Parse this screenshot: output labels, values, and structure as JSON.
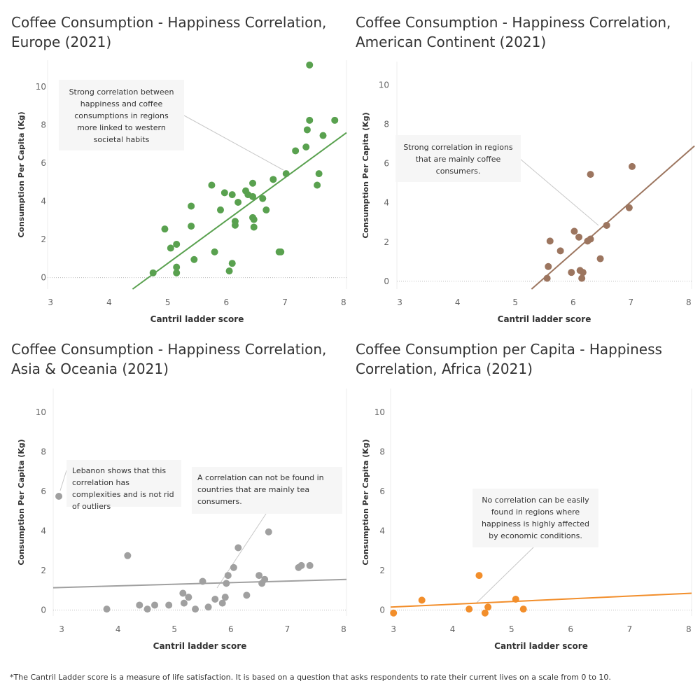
{
  "footnote": "*The Cantril Ladder score is a measure of life satisfaction. It is based on a question that asks respondents to rate their current lives on a scale from 0 to 10.",
  "chart_data": [
    {
      "type": "scatter",
      "title": "Coffee Consumption - Happiness  Correlation, Europe (2021)",
      "xlabel": "Cantril ladder score",
      "ylabel": "Consumption Per Capita (Kg)",
      "xlim": [
        2.95,
        8.05
      ],
      "ylim": [
        -0.6,
        11.4
      ],
      "x_ticks": [
        3,
        4,
        5,
        6,
        7,
        8
      ],
      "y_ticks": [
        0,
        2,
        4,
        6,
        8,
        10
      ],
      "color": "#59a14f",
      "trendline": [
        [
          4.4,
          -0.6
        ],
        [
          8.05,
          7.6
        ]
      ],
      "annotation": "Strong correlation between happiness and coffee consumptions in regions more linked to western societal habits",
      "points": [
        [
          4.75,
          0.25
        ],
        [
          4.95,
          2.55
        ],
        [
          5.05,
          1.55
        ],
        [
          5.15,
          0.25
        ],
        [
          5.15,
          0.55
        ],
        [
          5.15,
          1.75
        ],
        [
          5.4,
          3.75
        ],
        [
          5.4,
          2.7
        ],
        [
          5.45,
          0.95
        ],
        [
          5.75,
          4.85
        ],
        [
          5.8,
          1.35
        ],
        [
          5.9,
          3.55
        ],
        [
          5.97,
          4.45
        ],
        [
          6.05,
          0.35
        ],
        [
          6.1,
          4.35
        ],
        [
          6.1,
          0.75
        ],
        [
          6.15,
          2.75
        ],
        [
          6.15,
          2.95
        ],
        [
          6.2,
          3.95
        ],
        [
          6.33,
          4.55
        ],
        [
          6.37,
          4.35
        ],
        [
          6.45,
          4.25
        ],
        [
          6.45,
          4.95
        ],
        [
          6.45,
          3.15
        ],
        [
          6.47,
          3.05
        ],
        [
          6.47,
          2.65
        ],
        [
          6.62,
          4.15
        ],
        [
          6.68,
          3.55
        ],
        [
          6.8,
          5.15
        ],
        [
          6.9,
          1.35
        ],
        [
          6.93,
          1.35
        ],
        [
          7.02,
          5.45
        ],
        [
          7.18,
          6.65
        ],
        [
          7.36,
          6.85
        ],
        [
          7.38,
          7.75
        ],
        [
          7.42,
          8.25
        ],
        [
          7.42,
          11.15
        ],
        [
          7.55,
          4.85
        ],
        [
          7.58,
          5.45
        ],
        [
          7.65,
          7.45
        ],
        [
          7.85,
          8.25
        ]
      ]
    },
    {
      "type": "scatter",
      "title": "Coffee Consumption - Happiness  Correlation, American Continent (2021)",
      "xlabel": "Cantril ladder score",
      "ylabel": "Consumption Per Capita (Kg)",
      "xlim": [
        2.95,
        8.05
      ],
      "ylim": [
        -0.4,
        11.2
      ],
      "x_ticks": [
        3,
        4,
        5,
        6,
        7,
        8
      ],
      "y_ticks": [
        0,
        2,
        4,
        6,
        8,
        10
      ],
      "color": "#9c755f",
      "trendline": [
        [
          5.28,
          -0.4
        ],
        [
          8.1,
          6.9
        ]
      ],
      "annotation": "Strong correlation in regions that  are mainly coffee consumers.",
      "points": [
        [
          5.55,
          0.15
        ],
        [
          5.57,
          0.75
        ],
        [
          5.6,
          2.05
        ],
        [
          5.78,
          1.55
        ],
        [
          5.97,
          0.45
        ],
        [
          6.02,
          2.55
        ],
        [
          6.1,
          2.25
        ],
        [
          6.12,
          0.55
        ],
        [
          6.15,
          0.15
        ],
        [
          6.17,
          0.45
        ],
        [
          6.25,
          2.05
        ],
        [
          6.3,
          2.15
        ],
        [
          6.3,
          5.45
        ],
        [
          6.47,
          1.15
        ],
        [
          6.58,
          2.85
        ],
        [
          6.97,
          3.75
        ],
        [
          7.02,
          5.85
        ]
      ]
    },
    {
      "type": "scatter",
      "title": "Coffee Consumption - Happiness  Correlation, Asia & Oceania (2021)",
      "xlabel": "Cantril ladder score",
      "ylabel": "Consumption Per Capita (Kg)",
      "xlim": [
        2.85,
        8.05
      ],
      "ylim": [
        -0.3,
        11.2
      ],
      "x_ticks": [
        3,
        4,
        5,
        6,
        7,
        8
      ],
      "y_ticks": [
        0,
        2,
        4,
        6,
        8,
        10
      ],
      "color": "#a0a0a0",
      "trendline": [
        [
          2.85,
          1.13
        ],
        [
          8.05,
          1.55
        ]
      ],
      "annotations": [
        "Lebanon shows that this correlation has complexities and is not rid of outliers",
        "A correlation can not be found in countries that are mainly tea consumers."
      ],
      "points": [
        [
          2.95,
          5.75
        ],
        [
          3.8,
          0.05
        ],
        [
          4.17,
          2.75
        ],
        [
          4.38,
          0.25
        ],
        [
          4.52,
          0.05
        ],
        [
          4.65,
          0.25
        ],
        [
          4.9,
          0.25
        ],
        [
          5.15,
          0.85
        ],
        [
          5.17,
          0.35
        ],
        [
          5.25,
          0.65
        ],
        [
          5.37,
          0.05
        ],
        [
          5.5,
          1.45
        ],
        [
          5.6,
          0.15
        ],
        [
          5.72,
          0.55
        ],
        [
          5.85,
          0.35
        ],
        [
          5.9,
          0.65
        ],
        [
          5.92,
          1.35
        ],
        [
          5.95,
          1.75
        ],
        [
          6.05,
          2.15
        ],
        [
          6.13,
          3.15
        ],
        [
          6.28,
          0.75
        ],
        [
          6.5,
          1.75
        ],
        [
          6.55,
          1.35
        ],
        [
          6.6,
          1.55
        ],
        [
          6.67,
          3.95
        ],
        [
          7.2,
          2.15
        ],
        [
          7.25,
          2.25
        ],
        [
          7.4,
          2.25
        ]
      ]
    },
    {
      "type": "scatter",
      "title": "Coffee Consumption per Capita - Happiness Correlation, Africa (2021)",
      "xlabel": "Cantril ladder score",
      "ylabel": "Consumption Per Capita (Kg)",
      "xlim": [
        2.95,
        8.05
      ],
      "ylim": [
        -0.3,
        11.2
      ],
      "x_ticks": [
        3,
        4,
        5,
        6,
        7,
        8
      ],
      "y_ticks": [
        0,
        2,
        4,
        6,
        8,
        10
      ],
      "color": "#f28e2b",
      "trendline": [
        [
          2.95,
          0.15
        ],
        [
          8.05,
          0.85
        ]
      ],
      "annotation": "No correlation can be easily found in regions where happiness is highly affected by economic conditions.",
      "points": [
        [
          3.0,
          -0.15
        ],
        [
          3.48,
          0.5
        ],
        [
          4.28,
          0.05
        ],
        [
          4.45,
          1.75
        ],
        [
          4.55,
          -0.15
        ],
        [
          4.6,
          0.15
        ],
        [
          5.07,
          0.55
        ],
        [
          5.2,
          0.05
        ]
      ]
    }
  ]
}
